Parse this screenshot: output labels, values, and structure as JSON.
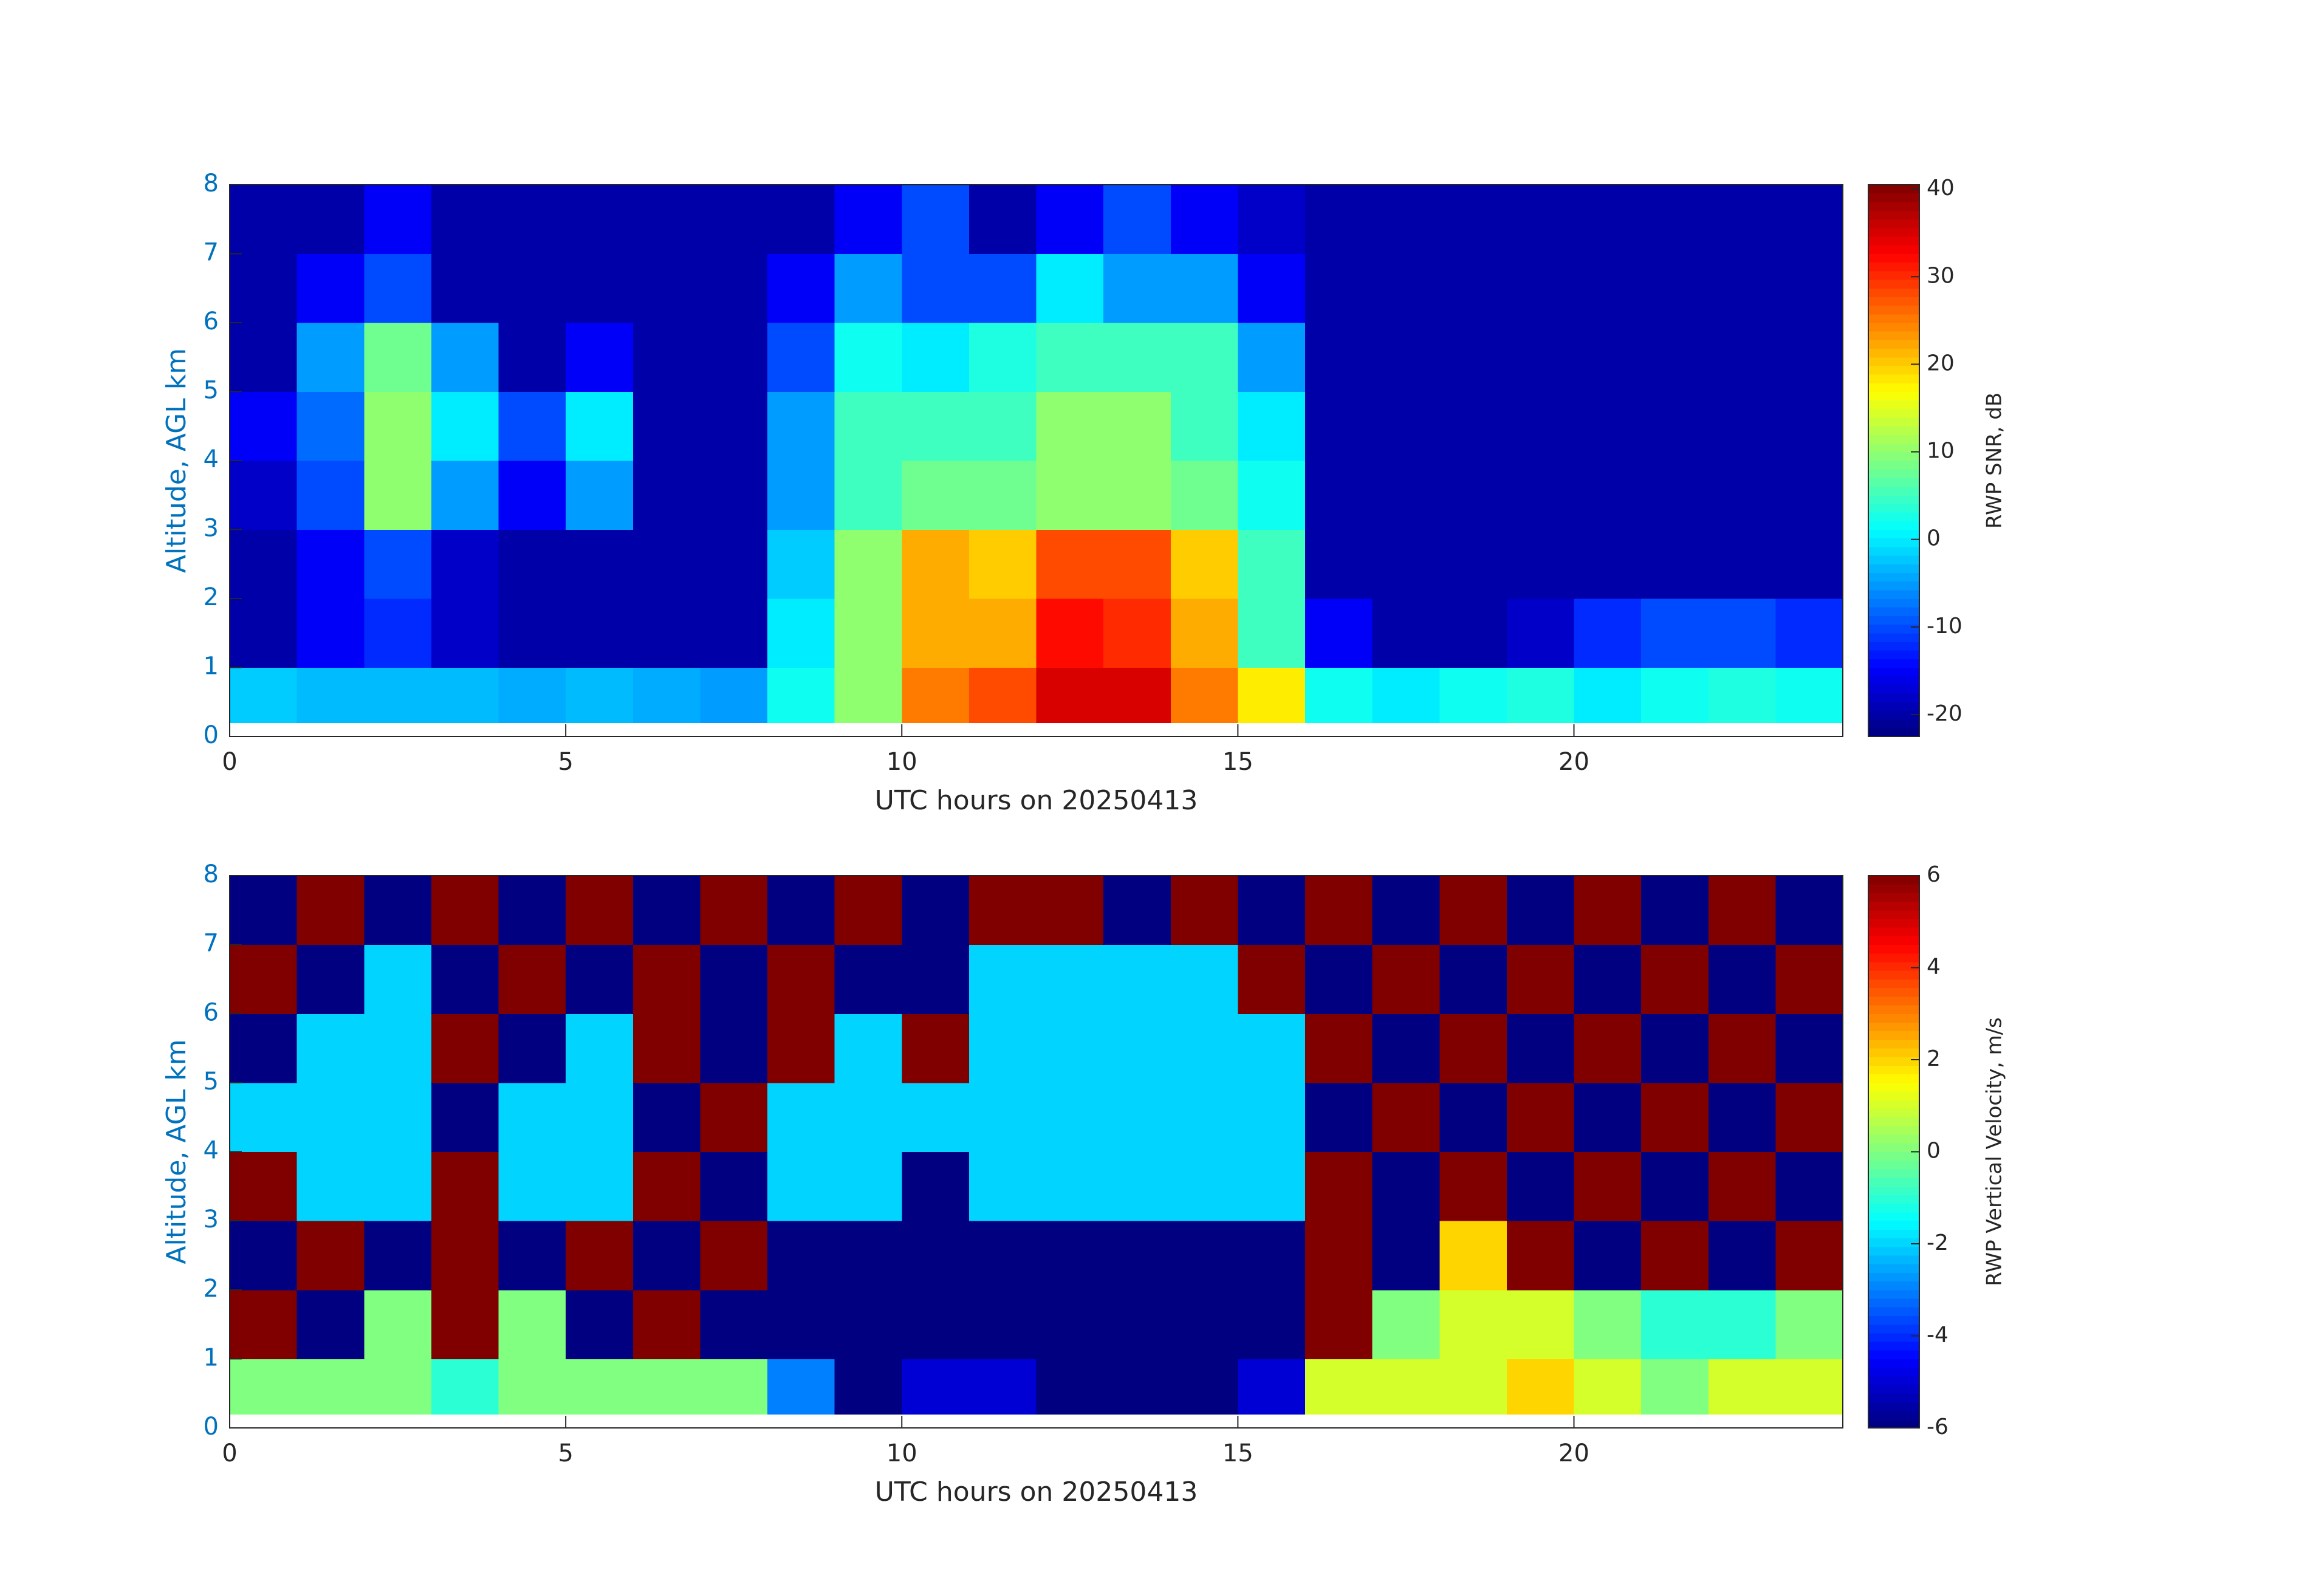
{
  "chart_data": [
    {
      "type": "heatmap",
      "colormap": "jet",
      "xlabel": "UTC hours on 20250413",
      "ylabel": "Altitude, AGL km",
      "xlim": [
        0,
        24
      ],
      "ylim": [
        0,
        8
      ],
      "xticks": [
        0,
        5,
        10,
        15,
        20
      ],
      "yticks": [
        0,
        1,
        2,
        3,
        4,
        5,
        6,
        7,
        8
      ],
      "x_edges": [
        0,
        1,
        2,
        3,
        4,
        5,
        6,
        7,
        8,
        9,
        10,
        11,
        12,
        13,
        14,
        15,
        16,
        17,
        18,
        19,
        20,
        21,
        22,
        23,
        24
      ],
      "y_edges": [
        0.2,
        1,
        2,
        3,
        4,
        5,
        6,
        7,
        8
      ],
      "values": [
        [
          -2,
          -3,
          -3,
          -3,
          -4,
          -3,
          -4,
          -5,
          2,
          10,
          25,
          28,
          35,
          35,
          25,
          18,
          2,
          0,
          2,
          3,
          0,
          2,
          3,
          2
        ],
        [
          -20,
          -15,
          -12,
          -18,
          -20,
          -20,
          -20,
          -20,
          0,
          10,
          22,
          22,
          32,
          30,
          22,
          5,
          -15,
          -20,
          -20,
          -18,
          -12,
          -10,
          -10,
          -12
        ],
        [
          -20,
          -15,
          -10,
          -18,
          -20,
          -20,
          -20,
          -20,
          -2,
          10,
          22,
          20,
          28,
          28,
          20,
          5,
          -20,
          -20,
          -20,
          -20,
          -20,
          -20,
          -20,
          -20
        ],
        [
          -18,
          -10,
          10,
          -5,
          -15,
          -5,
          -20,
          -20,
          -5,
          5,
          8,
          8,
          10,
          10,
          8,
          2,
          -20,
          -20,
          -20,
          -20,
          -20,
          -20,
          -20,
          -20
        ],
        [
          -15,
          -8,
          10,
          0,
          -10,
          0,
          -20,
          -20,
          -5,
          5,
          5,
          5,
          10,
          10,
          5,
          0,
          -20,
          -20,
          -20,
          -20,
          -20,
          -20,
          -20,
          -20
        ],
        [
          -20,
          -5,
          8,
          -5,
          -20,
          -15,
          -20,
          -20,
          -10,
          2,
          0,
          3,
          5,
          5,
          5,
          -5,
          -20,
          -20,
          -20,
          -20,
          -20,
          -20,
          -20,
          -20
        ],
        [
          -20,
          -15,
          -10,
          -20,
          -20,
          -20,
          -20,
          -20,
          -15,
          -5,
          -10,
          -10,
          0,
          -5,
          -5,
          -15,
          -20,
          -20,
          -20,
          -20,
          -20,
          -20,
          -20,
          -20
        ],
        [
          -20,
          -20,
          -15,
          -20,
          -20,
          -20,
          -20,
          -20,
          -20,
          -15,
          -10,
          -20,
          -15,
          -10,
          -15,
          -18,
          -20,
          -20,
          -20,
          -20,
          -20,
          -20,
          -20,
          -20
        ]
      ],
      "colorbar": {
        "label": "RWP SNR, dB",
        "lim": [
          -22.5,
          40.5
        ],
        "ticks": [
          -20,
          -10,
          0,
          10,
          20,
          30,
          40
        ]
      }
    },
    {
      "type": "heatmap",
      "colormap": "jet",
      "xlabel": "UTC hours on 20250413",
      "ylabel": "Altitude, AGL km",
      "xlim": [
        0,
        24
      ],
      "ylim": [
        0,
        8
      ],
      "xticks": [
        0,
        5,
        10,
        15,
        20
      ],
      "yticks": [
        0,
        1,
        2,
        3,
        4,
        5,
        6,
        7,
        8
      ],
      "x_edges": [
        0,
        1,
        2,
        3,
        4,
        5,
        6,
        7,
        8,
        9,
        10,
        11,
        12,
        13,
        14,
        15,
        16,
        17,
        18,
        19,
        20,
        21,
        22,
        23,
        24
      ],
      "y_edges": [
        0.2,
        1,
        2,
        3,
        4,
        5,
        6,
        7,
        8
      ],
      "values": [
        [
          0,
          0,
          0,
          -1,
          0,
          0,
          0,
          0,
          -3,
          -6,
          -5,
          -5,
          -6,
          -6,
          -6,
          -5,
          1,
          1,
          1,
          2,
          1,
          0,
          1,
          1
        ],
        [
          6,
          -6,
          0,
          6,
          0,
          -6,
          6,
          -6,
          -6,
          -6,
          -6,
          -6,
          -6,
          -6,
          -6,
          -6,
          6,
          0,
          1,
          1,
          0,
          -1,
          -1,
          0
        ],
        [
          -6,
          6,
          -6,
          6,
          -6,
          6,
          -6,
          6,
          -6,
          -6,
          -6,
          -6,
          -6,
          -6,
          -6,
          -6,
          6,
          -6,
          2,
          6,
          -6,
          6,
          -6,
          6
        ],
        [
          6,
          -2,
          -2,
          6,
          -2,
          -2,
          6,
          -6,
          -2,
          -2,
          -6,
          -2,
          -2,
          -2,
          -2,
          -2,
          6,
          -6,
          6,
          -6,
          6,
          -6,
          6,
          -6
        ],
        [
          -2,
          -2,
          -2,
          -6,
          -2,
          -2,
          -6,
          6,
          -2,
          -2,
          -2,
          -2,
          -2,
          -2,
          -2,
          -2,
          -6,
          6,
          -6,
          6,
          -6,
          6,
          -6,
          6
        ],
        [
          -6,
          -2,
          -2,
          6,
          -6,
          -2,
          6,
          -6,
          6,
          -2,
          6,
          -2,
          -2,
          -2,
          -2,
          -2,
          6,
          -6,
          6,
          -6,
          6,
          -6,
          6,
          -6
        ],
        [
          6,
          -6,
          -2,
          -6,
          6,
          -6,
          6,
          -6,
          6,
          -6,
          -6,
          -2,
          -2,
          -2,
          -2,
          6,
          -6,
          6,
          -6,
          6,
          -6,
          6,
          -6,
          6
        ],
        [
          -6,
          6,
          -6,
          6,
          -6,
          6,
          -6,
          6,
          -6,
          6,
          -6,
          6,
          6,
          -6,
          6,
          -6,
          6,
          -6,
          6,
          -6,
          6,
          -6,
          6,
          -6
        ]
      ],
      "colorbar": {
        "label": "RWP Vertical Velocity, m/s",
        "lim": [
          -6,
          6
        ],
        "ticks": [
          -6,
          -4,
          -2,
          0,
          2,
          4,
          6
        ]
      }
    }
  ]
}
